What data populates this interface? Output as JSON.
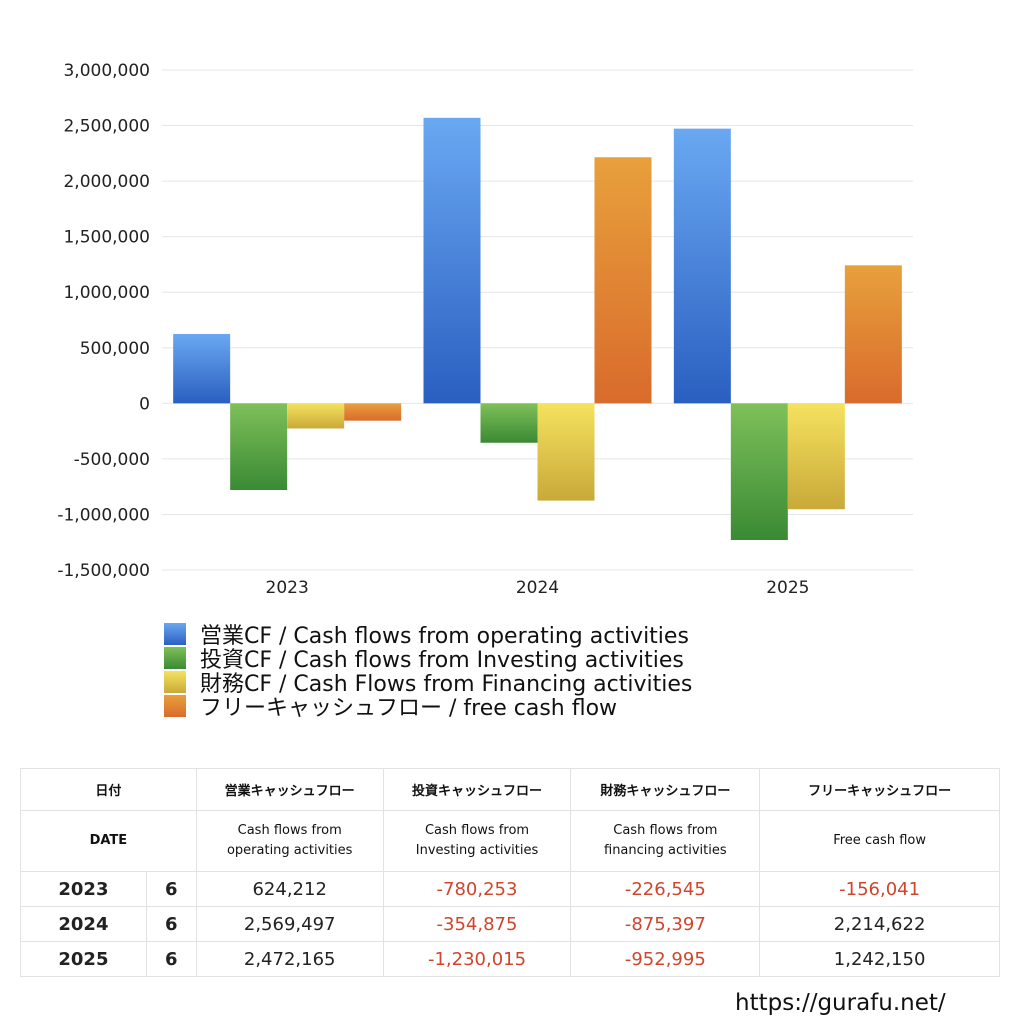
{
  "chart_data": {
    "type": "bar",
    "categories": [
      "2023",
      "2024",
      "2025"
    ],
    "series": [
      {
        "name": "営業CF / Cash flows from operating activities",
        "values": [
          624212,
          2569497,
          2472165
        ],
        "color_top": "#6aa8f2",
        "color_bottom": "#2a5fc0"
      },
      {
        "name": "投資CF / Cash flows from Investing activities",
        "values": [
          -780253,
          -354875,
          -1230015
        ],
        "color_top": "#7fc05a",
        "color_bottom": "#3a8a34"
      },
      {
        "name": "財務CF / Cash Flows from Financing activities",
        "values": [
          -226545,
          -875397,
          -952995
        ],
        "color_top": "#f5e25e",
        "color_bottom": "#c9a93a"
      },
      {
        "name": "フリーキャッシュフロー / free cash flow",
        "values": [
          -156041,
          2214622,
          1242150
        ],
        "color_top": "#e8a03c",
        "color_bottom": "#d96b2c"
      }
    ],
    "ylim": [
      -1500000,
      3000000
    ],
    "yticks": [
      "3,000,000",
      "2,500,000",
      "2,000,000",
      "1,500,000",
      "1,000,000",
      "500,000",
      "0",
      "-500,000",
      "-1,000,000",
      "-1,500,000"
    ],
    "ytick_values": [
      3000000,
      2500000,
      2000000,
      1500000,
      1000000,
      500000,
      0,
      -500000,
      -1000000,
      -1500000
    ],
    "grid": true,
    "legend_position": "bottom-left"
  },
  "table": {
    "header": {
      "date": "日付",
      "operating": "営業キャッシュフロー",
      "investing": "投資キャッシュフロー",
      "financing": "財務キャッシュフロー",
      "free": "フリーキャッシュフロー"
    },
    "subheader": {
      "date": "DATE",
      "operating_1": "Cash flows from",
      "operating_2": "operating activities",
      "investing_1": "Cash flows from",
      "investing_2": "Investing activities",
      "financing_1": "Cash flows from",
      "financing_2": "financing activities",
      "free": "Free cash flow"
    },
    "rows": [
      {
        "year": "2023",
        "month": "6",
        "operating": "624,212",
        "investing": "-780,253",
        "financing": "-226,545",
        "free": "-156,041"
      },
      {
        "year": "2024",
        "month": "6",
        "operating": "2,569,497",
        "investing": "-354,875",
        "financing": "-875,397",
        "free": "2,214,622"
      },
      {
        "year": "2025",
        "month": "6",
        "operating": "2,472,165",
        "investing": "-1,230,015",
        "financing": "-952,995",
        "free": "1,242,150"
      }
    ]
  },
  "footer": {
    "site": "https://gurafu.net/"
  },
  "colors": {
    "negative_text": "#d0452c",
    "grid": "#e6e6e6"
  }
}
